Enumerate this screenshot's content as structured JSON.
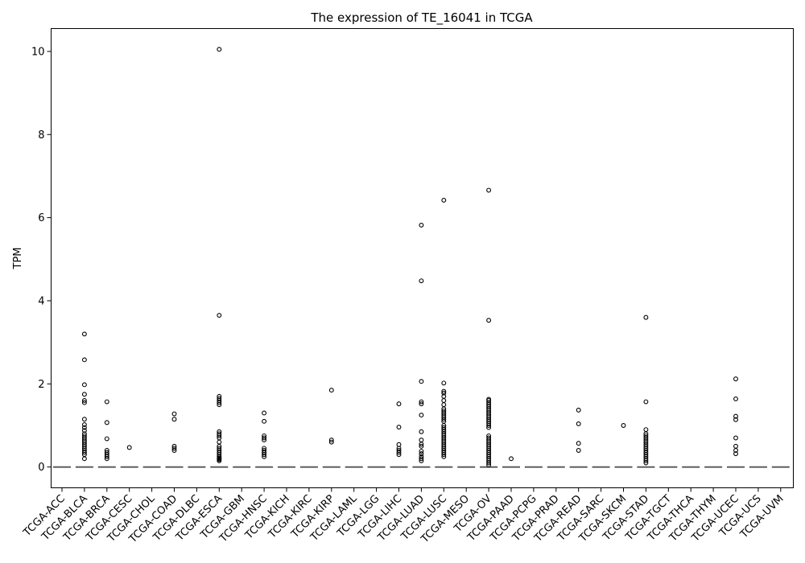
{
  "chart_data": {
    "type": "box",
    "title": "The expression of TE_16041 in TCGA",
    "xlabel": "",
    "ylabel": "TPM",
    "ylim": [
      -0.5,
      10.55
    ],
    "yticks": [
      0,
      2,
      4,
      6,
      8,
      10
    ],
    "grid": false,
    "legend": "none",
    "categories": [
      "TCGA-ACC",
      "TCGA-BLCA",
      "TCGA-BRCA",
      "TCGA-CESC",
      "TCGA-CHOL",
      "TCGA-COAD",
      "TCGA-DLBC",
      "TCGA-ESCA",
      "TCGA-GBM",
      "TCGA-HNSC",
      "TCGA-KICH",
      "TCGA-KIRC",
      "TCGA-KIRP",
      "TCGA-LAML",
      "TCGA-LGG",
      "TCGA-LIHC",
      "TCGA-LUAD",
      "TCGA-LUSC",
      "TCGA-MESO",
      "TCGA-OV",
      "TCGA-PAAD",
      "TCGA-PCPG",
      "TCGA-PRAD",
      "TCGA-READ",
      "TCGA-SARC",
      "TCGA-SKCM",
      "TCGA-STAD",
      "TCGA-TGCT",
      "TCGA-THCA",
      "TCGA-THYM",
      "TCGA-UCEC",
      "TCGA-UCS",
      "TCGA-UVM"
    ],
    "medians": [
      0,
      0,
      0,
      0,
      0,
      0,
      0,
      0,
      0,
      0,
      0,
      0,
      0,
      0,
      0,
      0,
      0,
      0,
      0,
      0,
      0,
      0,
      0,
      0,
      0,
      0,
      0,
      0,
      0,
      0,
      0,
      0,
      0
    ],
    "outliers": [
      [],
      [
        3.2,
        2.58,
        1.98,
        1.75,
        1.6,
        1.55,
        1.15,
        1.02,
        0.95,
        0.88,
        0.8,
        0.75,
        0.7,
        0.65,
        0.6,
        0.55,
        0.5,
        0.45,
        0.4,
        0.35,
        0.3,
        0.2
      ],
      [
        1.57,
        1.07,
        0.68,
        0.4,
        0.35,
        0.3,
        0.25,
        0.2
      ],
      [
        0.47
      ],
      [],
      [
        1.28,
        1.15,
        0.5,
        0.45,
        0.4
      ],
      [],
      [
        10.05,
        3.65,
        1.7,
        1.65,
        1.6,
        1.55,
        1.5,
        0.85,
        0.8,
        0.75,
        0.7,
        0.6,
        0.5,
        0.45,
        0.4,
        0.35,
        0.3,
        0.25,
        0.22,
        0.2,
        0.18,
        0.15
      ],
      [],
      [
        1.3,
        1.1,
        0.75,
        0.7,
        0.65,
        0.45,
        0.4,
        0.35,
        0.3,
        0.25
      ],
      [],
      [],
      [
        1.85,
        0.65,
        0.6
      ],
      [],
      [],
      [
        1.52,
        0.96,
        0.54,
        0.45,
        0.4,
        0.35,
        0.3
      ],
      [
        5.82,
        4.48,
        2.06,
        1.57,
        1.52,
        1.25,
        0.85,
        0.65,
        0.55,
        0.5,
        0.38,
        0.32,
        0.25,
        0.2,
        0.15
      ],
      [
        6.42,
        2.02,
        1.82,
        1.78,
        1.7,
        1.6,
        1.5,
        1.4,
        1.35,
        1.3,
        1.25,
        1.2,
        1.15,
        1.1,
        1.0,
        0.95,
        0.9,
        0.85,
        0.8,
        0.75,
        0.7,
        0.65,
        0.6,
        0.55,
        0.5,
        0.45,
        0.4,
        0.35,
        0.3,
        0.25
      ],
      [],
      [
        6.66,
        3.53,
        1.63,
        1.6,
        1.55,
        1.5,
        1.45,
        1.4,
        1.35,
        1.3,
        1.25,
        1.2,
        1.15,
        1.1,
        1.05,
        1.0,
        0.95,
        0.75,
        0.7,
        0.65,
        0.6,
        0.55,
        0.5,
        0.45,
        0.4,
        0.35,
        0.3,
        0.25,
        0.2,
        0.15,
        0.1,
        0.05
      ],
      [
        0.2
      ],
      [],
      [],
      [
        1.37,
        1.04,
        0.57,
        0.4
      ],
      [],
      [
        1.0
      ],
      [
        3.6,
        1.57,
        0.9,
        0.8,
        0.75,
        0.7,
        0.65,
        0.6,
        0.55,
        0.5,
        0.45,
        0.4,
        0.35,
        0.3,
        0.25,
        0.2,
        0.15,
        0.1
      ],
      [],
      [],
      [],
      [
        2.12,
        1.64,
        1.22,
        1.14,
        0.7,
        0.5,
        0.4,
        0.32
      ],
      [],
      []
    ]
  }
}
